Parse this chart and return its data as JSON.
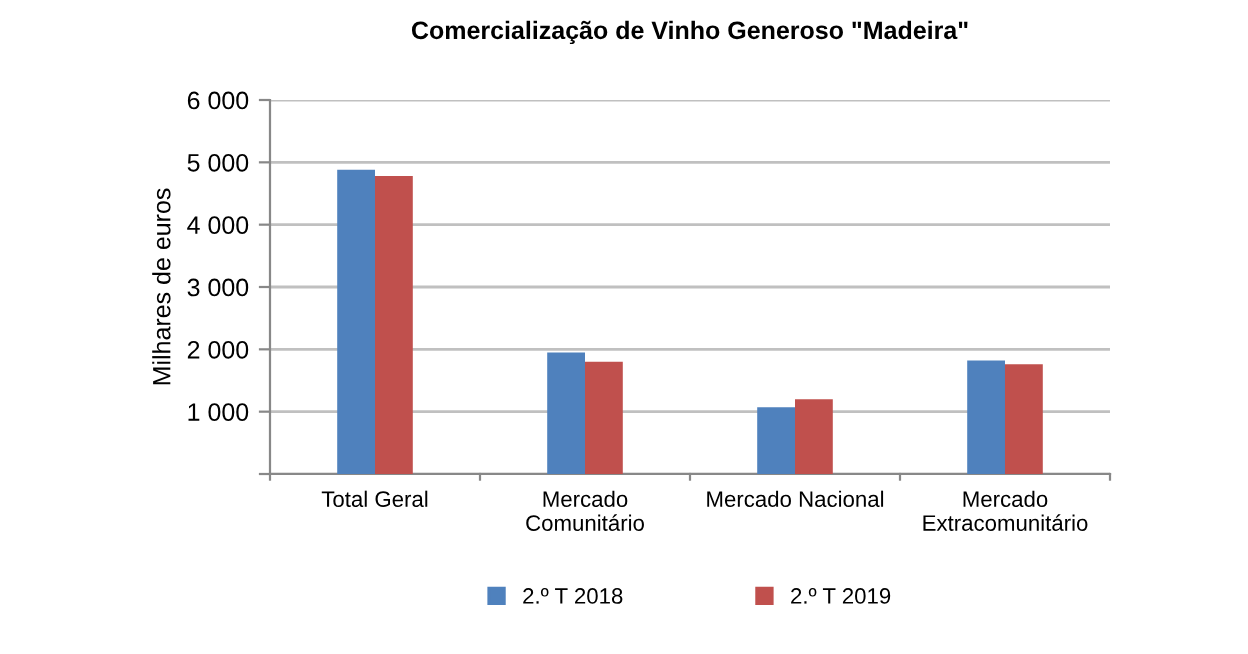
{
  "chart_data": {
    "type": "bar",
    "title": "Comercialização de Vinho Generoso \"Madeira\"",
    "ylabel": "Milhares de euros",
    "categories": [
      "Total Geral",
      "Mercado\nComunitário",
      "Mercado Nacional",
      "Mercado\nExtracomunitário"
    ],
    "series": [
      {
        "name": "2.º T 2018",
        "color": "#4f81bd",
        "values": [
          4880,
          1950,
          1070,
          1820
        ]
      },
      {
        "name": "2.º T 2019",
        "color": "#c0504d",
        "values": [
          4780,
          1800,
          1200,
          1760
        ]
      }
    ],
    "ylim": [
      0,
      6000
    ],
    "yticks": [
      {
        "value": 0,
        "label": null
      },
      {
        "value": 1000,
        "label": "1 000"
      },
      {
        "value": 2000,
        "label": "2 000"
      },
      {
        "value": 3000,
        "label": "3 000"
      },
      {
        "value": 4000,
        "label": "4 000"
      },
      {
        "value": 5000,
        "label": "5 000"
      },
      {
        "value": 6000,
        "label": "6 000"
      }
    ],
    "grid": "y",
    "legend": "bottom"
  }
}
